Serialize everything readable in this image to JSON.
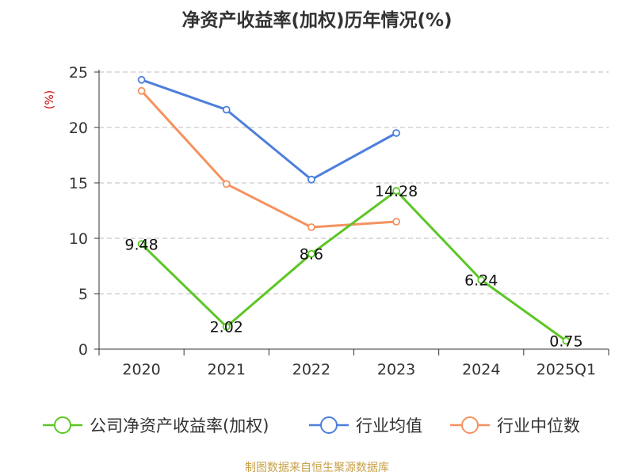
{
  "chart_data": {
    "type": "line",
    "title": "净资产收益率(加权)历年情况(%)",
    "ylabel": "(%)",
    "categories": [
      "2020",
      "2021",
      "2022",
      "2023",
      "2024",
      "2025Q1"
    ],
    "ylim": [
      0,
      25
    ],
    "yticks": [
      "0",
      "5",
      "10",
      "15",
      "20",
      "25"
    ],
    "grid": true,
    "legend_position": "bottom",
    "series": [
      {
        "name": "公司净资产收益率(加权)",
        "color": "#5cc625",
        "values": [
          9.48,
          2.02,
          8.6,
          14.28,
          6.24,
          0.75
        ],
        "labels": [
          "9.48",
          "2.02",
          "8.6",
          "14.28",
          "6.24",
          "0.75"
        ]
      },
      {
        "name": "行业均值",
        "color": "#4d7fdb",
        "values": [
          24.3,
          21.6,
          15.3,
          19.5,
          null,
          null
        ]
      },
      {
        "name": "行业中位数",
        "color": "#f59260",
        "values": [
          23.3,
          14.9,
          11.0,
          11.5,
          null,
          null
        ]
      }
    ],
    "source": "制图数据来自恒生聚源数据库"
  }
}
